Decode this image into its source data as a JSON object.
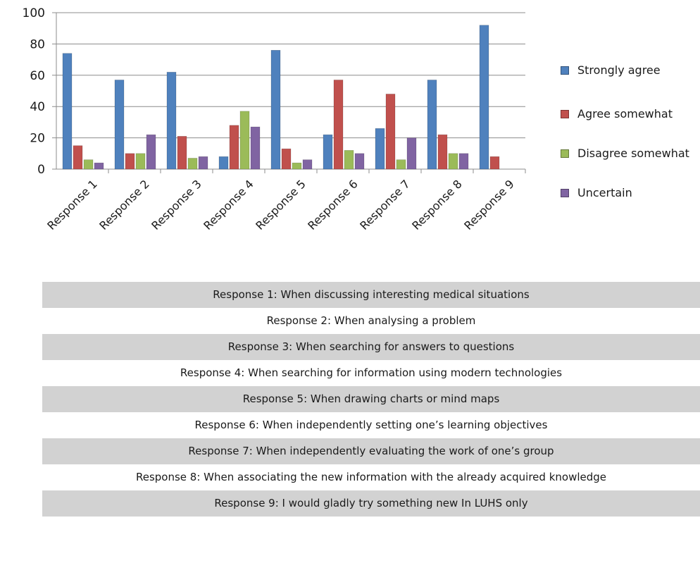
{
  "chart_data": {
    "type": "bar",
    "categories": [
      "Response 1",
      "Response 2",
      "Response 3",
      "Response 4",
      "Response 5",
      "Response 6",
      "Response 7",
      "Response 8",
      "Response 9"
    ],
    "series": [
      {
        "name": "Strongly agree",
        "color": "#4f81bd",
        "values": [
          74,
          57,
          62,
          8,
          76,
          22,
          26,
          57,
          92
        ]
      },
      {
        "name": "Agree somewhat",
        "color": "#c0504d",
        "values": [
          15,
          10,
          21,
          28,
          13,
          57,
          48,
          22,
          8
        ]
      },
      {
        "name": "Disagree somewhat",
        "color": "#9bbb59",
        "values": [
          6,
          10,
          7,
          37,
          4,
          12,
          6,
          10,
          0
        ]
      },
      {
        "name": "Uncertain",
        "color": "#8064a2",
        "values": [
          4,
          22,
          8,
          27,
          6,
          10,
          20,
          10,
          0
        ]
      }
    ],
    "ylim": [
      0,
      100
    ],
    "yticks": [
      0,
      20,
      40,
      60,
      80,
      100
    ],
    "grid": true,
    "legend_position": "right"
  },
  "descriptions": [
    "Response 1: When discussing interesting medical situations",
    "Response 2: When analysing a problem",
    "Response 3: When searching for answers to questions",
    "Response 4: When searching for information using modern technologies",
    "Response 5: When drawing charts or mind maps",
    "Response 6: When independently setting one’s learning objectives",
    "Response 7: When independently evaluating the work of one’s group",
    "Response 8: When associating the new information with the already acquired knowledge",
    "Response 9: I would gladly try something new In LUHS only"
  ]
}
